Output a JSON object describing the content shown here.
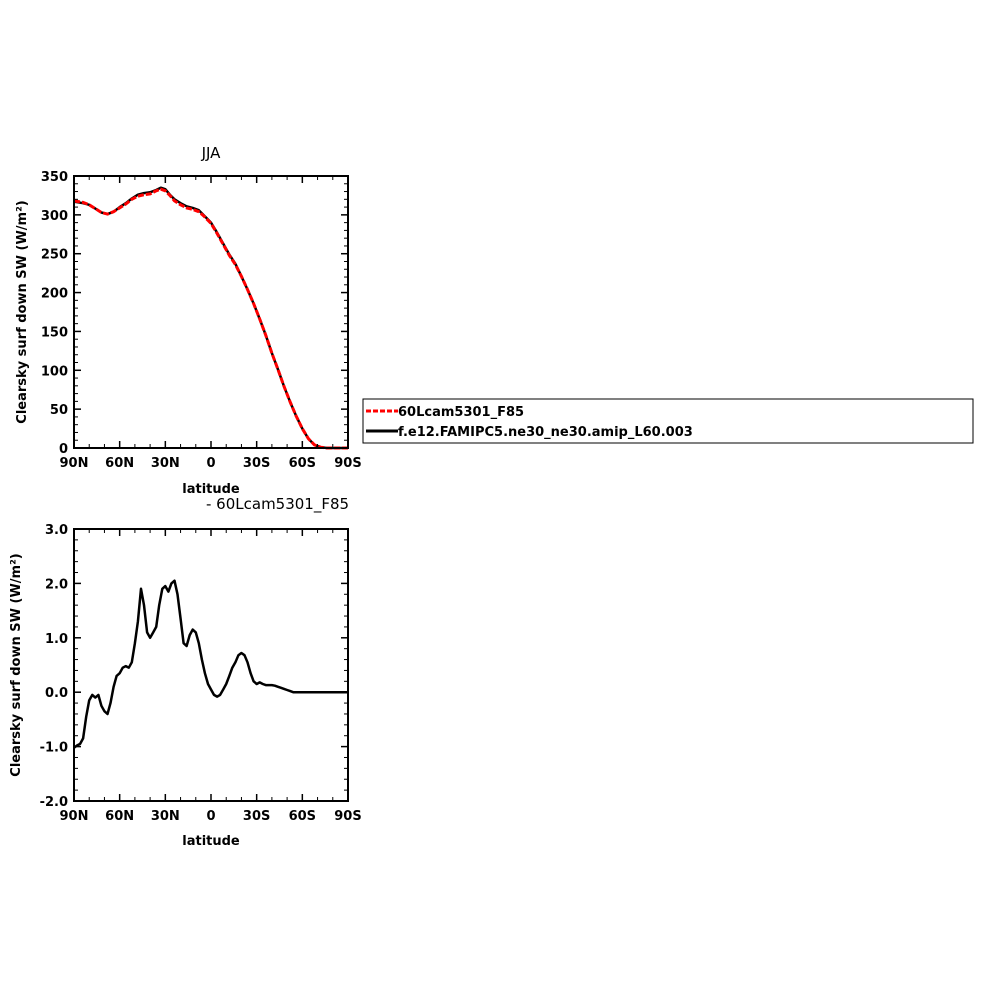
{
  "chart_data": [
    {
      "type": "line",
      "title": "JJA",
      "xlabel": "latitude",
      "ylabel": "Clearsky surf down SW (W/m²)",
      "ylim": [
        0,
        350
      ],
      "yticks": [
        0,
        50,
        100,
        150,
        200,
        250,
        300,
        350
      ],
      "xlim": [
        90,
        -90
      ],
      "xticks": [
        90,
        60,
        30,
        0,
        -30,
        -60,
        -90
      ],
      "xtick_labels": [
        "90N",
        "60N",
        "30N",
        "0",
        "30S",
        "60S",
        "90S"
      ],
      "series": [
        {
          "name": "60Lcam5301_F85",
          "color": "#ff0000",
          "style": "dashed",
          "x": [
            90,
            84,
            80,
            76,
            72,
            68,
            64,
            60,
            56,
            52,
            48,
            44,
            40,
            36,
            33,
            30,
            27,
            24,
            20,
            16,
            12,
            8,
            5,
            2,
            0,
            -4,
            -8,
            -12,
            -16,
            -20,
            -24,
            -28,
            -32,
            -36,
            -40,
            -44,
            -48,
            -52,
            -56,
            -60,
            -64,
            -68,
            -72,
            -76,
            -80,
            -84,
            -88,
            -90
          ],
          "values": [
            318,
            316,
            313,
            308,
            303,
            301,
            304,
            309,
            314,
            320,
            324,
            326,
            327,
            331,
            333,
            331,
            325,
            318,
            313,
            309,
            307,
            304,
            299,
            293,
            289,
            276,
            262,
            248,
            236,
            221,
            204,
            186,
            166,
            145,
            122,
            101,
            79,
            59,
            41,
            25,
            12,
            4,
            1,
            0,
            0,
            0,
            0,
            0
          ]
        },
        {
          "name": "f.e12.FAMIPC5.ne30_ne30.amip_L60.003",
          "color": "#000000",
          "style": "solid",
          "x": [
            90,
            84,
            80,
            76,
            72,
            68,
            64,
            60,
            56,
            52,
            48,
            44,
            40,
            36,
            33,
            30,
            27,
            24,
            20,
            16,
            12,
            8,
            5,
            2,
            0,
            -4,
            -8,
            -12,
            -16,
            -20,
            -24,
            -28,
            -32,
            -36,
            -40,
            -44,
            -48,
            -52,
            -56,
            -60,
            -64,
            -68,
            -72,
            -76,
            -80,
            -84,
            -88,
            -90
          ],
          "values": [
            317,
            315,
            313,
            308,
            303,
            301,
            304,
            310,
            315,
            321,
            326,
            328,
            329,
            332,
            335,
            333,
            326,
            320,
            315,
            311,
            309,
            306,
            300,
            294,
            290,
            277,
            263,
            249,
            237,
            221,
            204,
            186,
            166,
            145,
            122,
            101,
            79,
            59,
            41,
            25,
            12,
            4,
            1,
            0,
            0,
            0,
            0,
            0
          ]
        }
      ]
    },
    {
      "type": "line",
      "title": "- 60Lcam5301_F85",
      "xlabel": "latitude",
      "ylabel": "Clearsky surf down SW (W/m²)",
      "ylim": [
        -2.0,
        3.0
      ],
      "yticks": [
        -2.0,
        -1.0,
        0.0,
        1.0,
        2.0,
        3.0
      ],
      "ytick_labels": [
        "-2.0",
        "-1.0",
        "0.0",
        "1.0",
        "2.0",
        "3.0"
      ],
      "xlim": [
        90,
        -90
      ],
      "xticks": [
        90,
        60,
        30,
        0,
        -30,
        -60,
        -90
      ],
      "xtick_labels": [
        "90N",
        "60N",
        "30N",
        "0",
        "30S",
        "60S",
        "90S"
      ],
      "series": [
        {
          "color": "#000000",
          "style": "solid",
          "x": [
            90,
            88,
            86,
            84,
            82,
            80,
            78,
            76,
            74,
            72,
            70,
            68,
            66,
            64,
            62,
            60,
            58,
            56,
            54,
            52,
            50,
            48,
            46,
            44,
            42,
            40,
            38,
            36,
            34,
            32,
            30,
            28,
            26,
            24,
            22,
            20,
            18,
            16,
            14,
            12,
            10,
            8,
            6,
            4,
            2,
            0,
            -2,
            -4,
            -6,
            -8,
            -10,
            -12,
            -14,
            -16,
            -18,
            -20,
            -22,
            -24,
            -26,
            -28,
            -30,
            -32,
            -34,
            -36,
            -38,
            -40,
            -42,
            -44,
            -46,
            -48,
            -50,
            -52,
            -54,
            -56,
            -58,
            -60,
            -62,
            -64,
            -66,
            -68,
            -70,
            -72,
            -74,
            -76,
            -78,
            -80,
            -82,
            -84,
            -86,
            -88,
            -90
          ],
          "values": [
            -1.02,
            -0.98,
            -0.95,
            -0.85,
            -0.45,
            -0.15,
            -0.05,
            -0.1,
            -0.05,
            -0.25,
            -0.35,
            -0.4,
            -0.2,
            0.1,
            0.3,
            0.35,
            0.45,
            0.48,
            0.45,
            0.55,
            0.9,
            1.3,
            1.9,
            1.6,
            1.1,
            1.0,
            1.1,
            1.2,
            1.6,
            1.9,
            1.95,
            1.85,
            2.0,
            2.05,
            1.8,
            1.35,
            0.9,
            0.85,
            1.05,
            1.15,
            1.1,
            0.9,
            0.6,
            0.35,
            0.15,
            0.05,
            -0.05,
            -0.08,
            -0.05,
            0.05,
            0.15,
            0.3,
            0.45,
            0.55,
            0.68,
            0.72,
            0.68,
            0.55,
            0.35,
            0.2,
            0.15,
            0.18,
            0.15,
            0.13,
            0.13,
            0.13,
            0.12,
            0.1,
            0.08,
            0.06,
            0.04,
            0.02,
            0.0,
            0.0,
            0.0,
            0.0,
            0.0,
            0.0,
            0.0,
            0.0,
            0.0,
            0.0,
            0.0,
            0.0,
            0.0,
            0.0,
            0.0,
            0.0,
            0.0,
            0.0,
            0.0
          ]
        }
      ]
    }
  ],
  "legend": {
    "placement": "right of top panel",
    "entries": [
      {
        "name": "60Lcam5301_F85",
        "color": "#ff0000",
        "style": "dashed"
      },
      {
        "name": "f.e12.FAMIPC5.ne30_ne30.amip_L60.003",
        "color": "#000000",
        "style": "solid"
      }
    ]
  }
}
